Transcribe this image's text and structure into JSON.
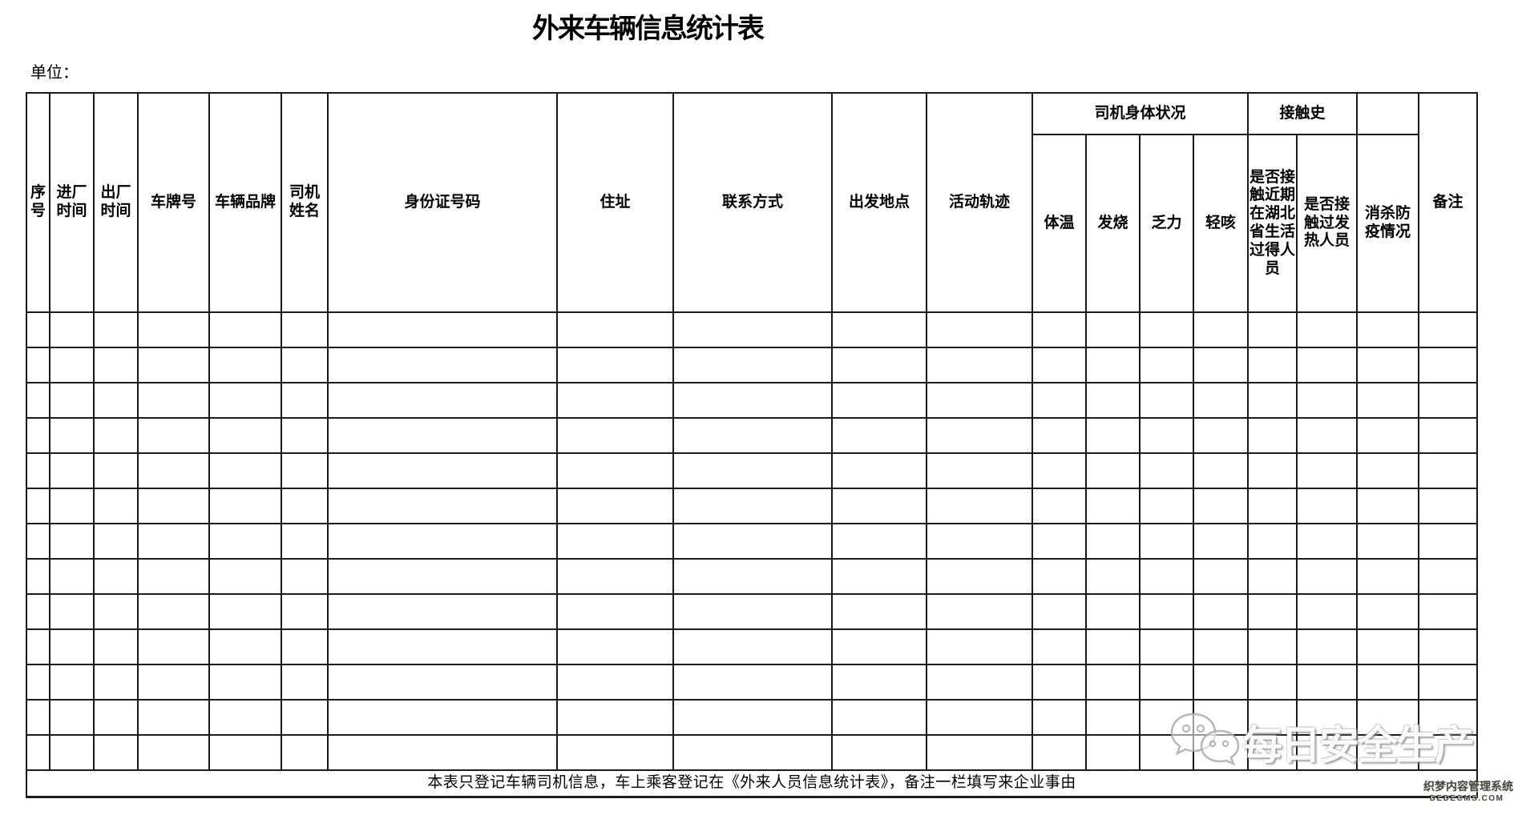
{
  "page": {
    "title": "外来车辆信息统计表",
    "unit_label": "单位："
  },
  "table": {
    "main_columns": [
      "序号",
      "进厂时间",
      "出厂时间",
      "车牌号",
      "车辆品牌",
      "司机姓名",
      "身份证号码",
      "住址",
      "联系方式",
      "出发地点",
      "活动轨迹"
    ],
    "driver_health_group": {
      "label": "司机身体状况",
      "sub_columns": [
        "体温",
        "发烧",
        "乏力",
        "轻咳"
      ]
    },
    "contact_history_group": {
      "label": "接触史",
      "sub_columns": [
        "是否接触近期在湖北省生活过得人员",
        "是否接触过发热人员"
      ]
    },
    "disinfection_column": "消杀防疫情况",
    "remark_column": "备注",
    "body_row_count": 13,
    "footer_note": "本表只登记车辆司机信息，车上乘客登记在《外来人员信息统计表》，备注一栏填写来企业事由"
  },
  "watermark": {
    "text": "每日安全生产"
  },
  "cms_badge": {
    "line1": "织梦内容管理系统",
    "line2": "DEDECMS.COM"
  }
}
